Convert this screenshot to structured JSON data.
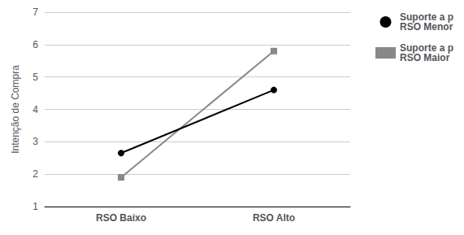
{
  "chart_data": {
    "type": "line",
    "categories": [
      "RSO Baixo",
      "RSO Alto"
    ],
    "series": [
      {
        "name": "Suporte a p\nRSO Menor",
        "color": "#000000",
        "marker": "circle",
        "values": [
          2.65,
          4.6
        ]
      },
      {
        "name": "Suporte a p\nRSO Maior",
        "color": "#888888",
        "marker": "square",
        "values": [
          1.9,
          5.8
        ]
      }
    ],
    "ylabel": "Intenção de Compra",
    "ylim": [
      1,
      7
    ],
    "yticks": [
      1,
      2,
      3,
      4,
      5,
      6,
      7
    ],
    "grid": true,
    "legend": "upper right"
  }
}
